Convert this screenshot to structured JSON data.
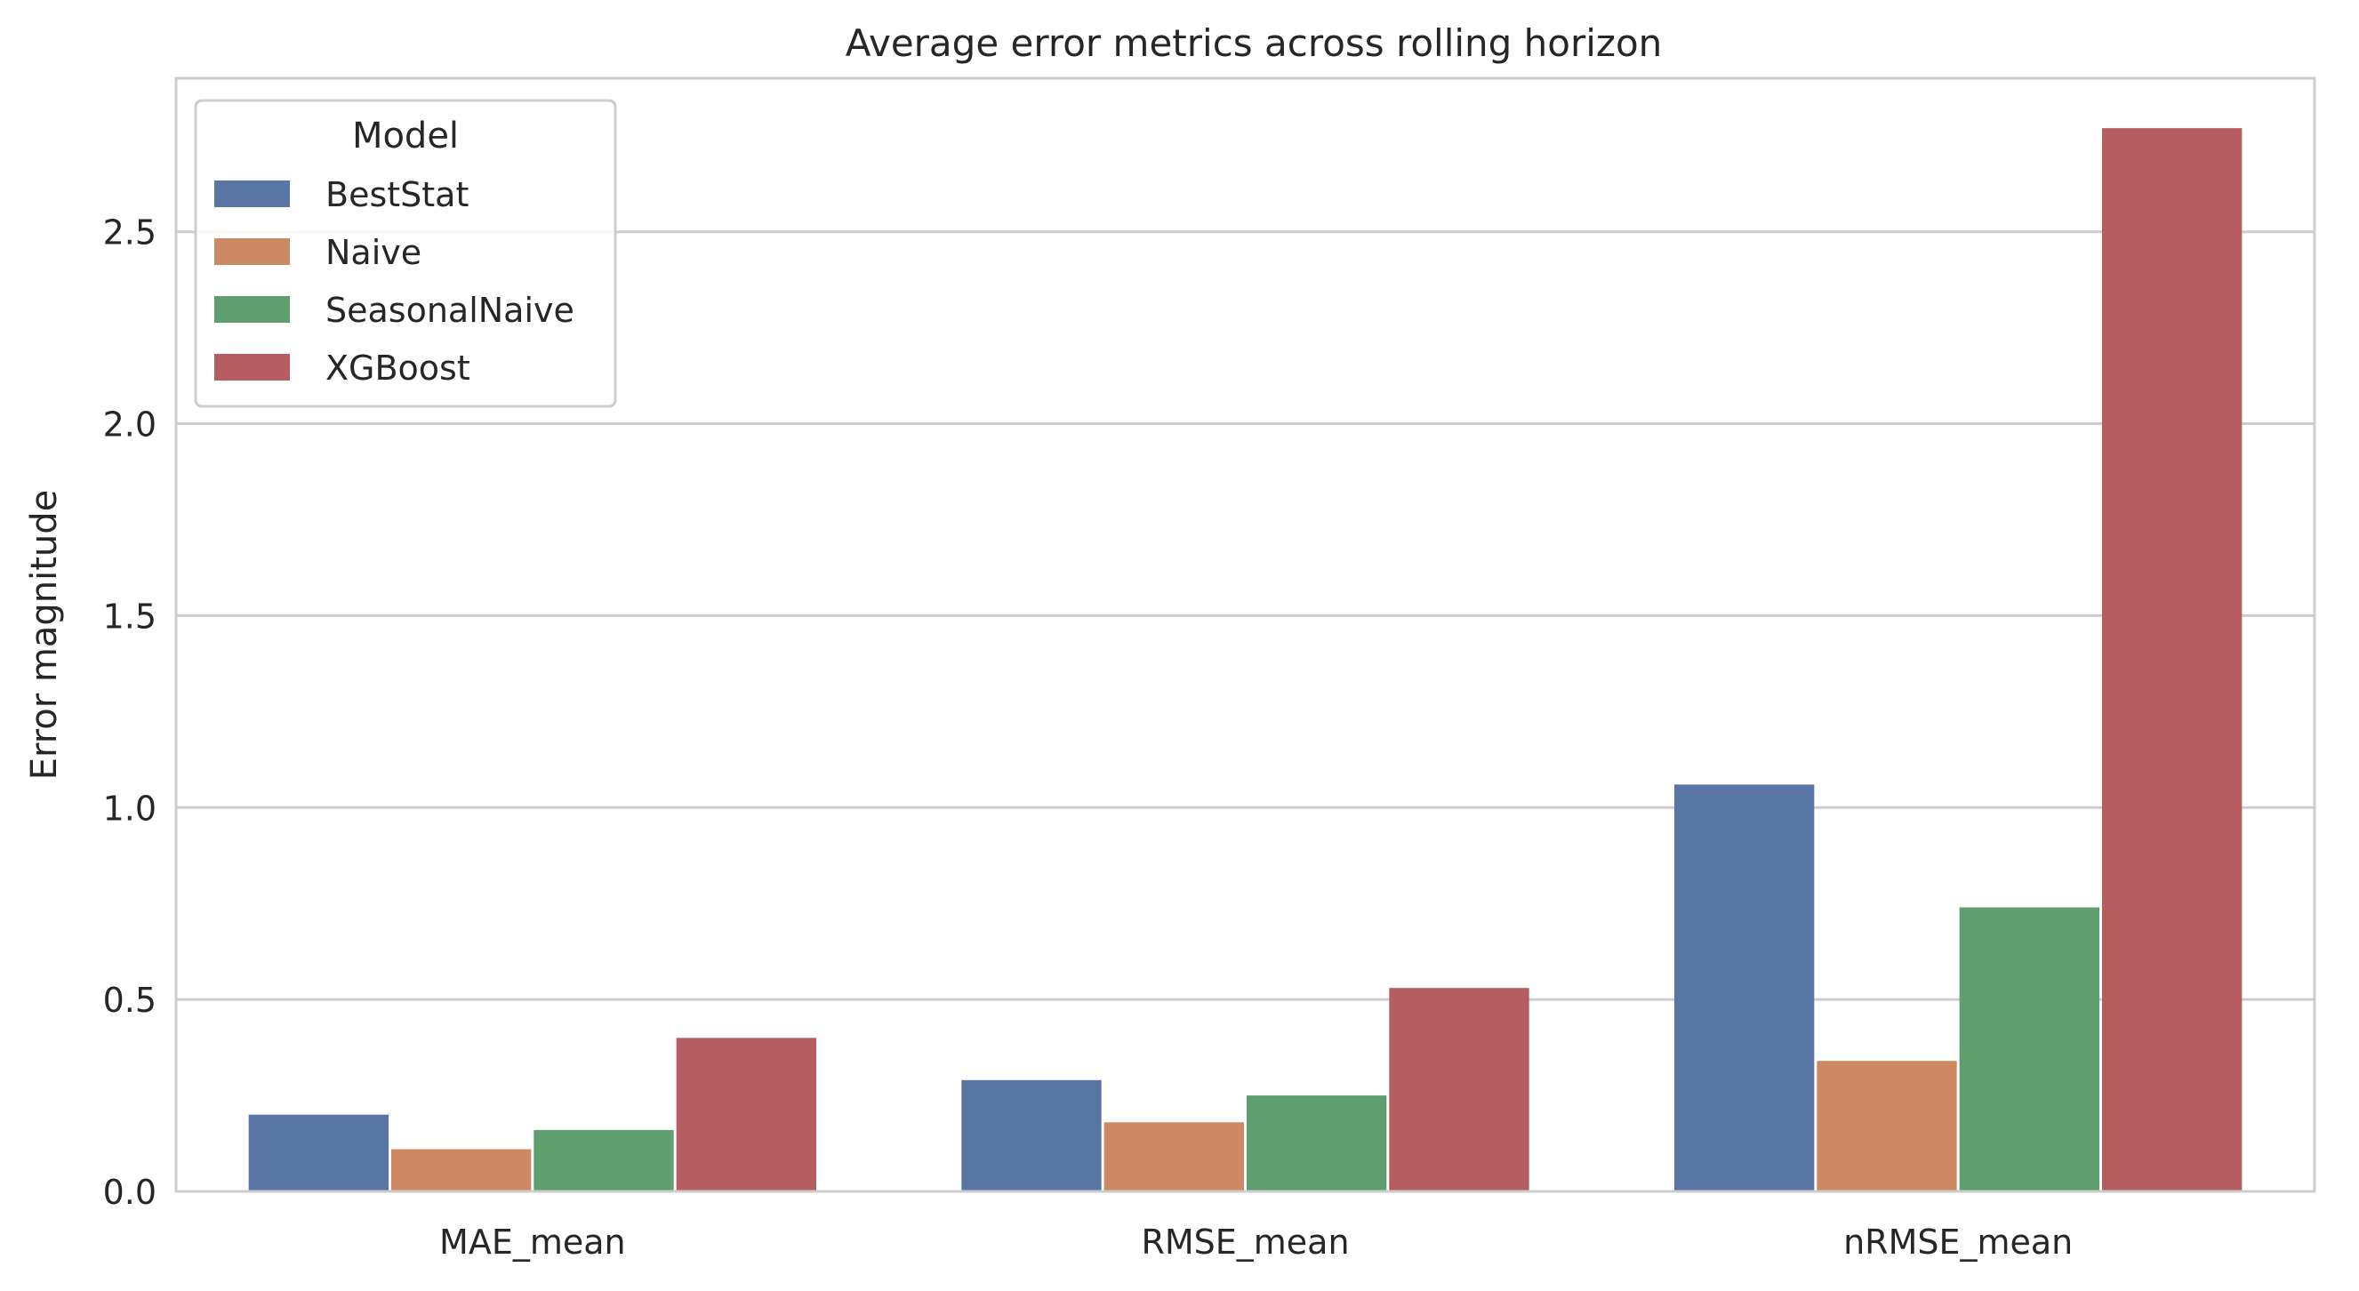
{
  "chart_data": {
    "type": "bar",
    "title": "Average error metrics across rolling horizon",
    "xlabel": "",
    "ylabel": "Error magnitude",
    "categories": [
      "MAE_mean",
      "RMSE_mean",
      "nRMSE_mean"
    ],
    "series": [
      {
        "name": "BestStat",
        "color": "#5975a4",
        "values": [
          0.2,
          0.29,
          1.06
        ]
      },
      {
        "name": "Naive",
        "color": "#cc8963",
        "values": [
          0.11,
          0.18,
          0.34
        ]
      },
      {
        "name": "SeasonalNaive",
        "color": "#5f9e6e",
        "values": [
          0.16,
          0.25,
          0.74
        ]
      },
      {
        "name": "XGBoost",
        "color": "#b55d60",
        "values": [
          0.4,
          0.53,
          2.77
        ]
      }
    ],
    "ylim": [
      0,
      2.9
    ],
    "yticks": [
      "0.0",
      "0.5",
      "1.0",
      "1.5",
      "2.0",
      "2.5"
    ],
    "grid": "horizontal",
    "legend": {
      "title": "Model",
      "placement": "top-left"
    }
  }
}
